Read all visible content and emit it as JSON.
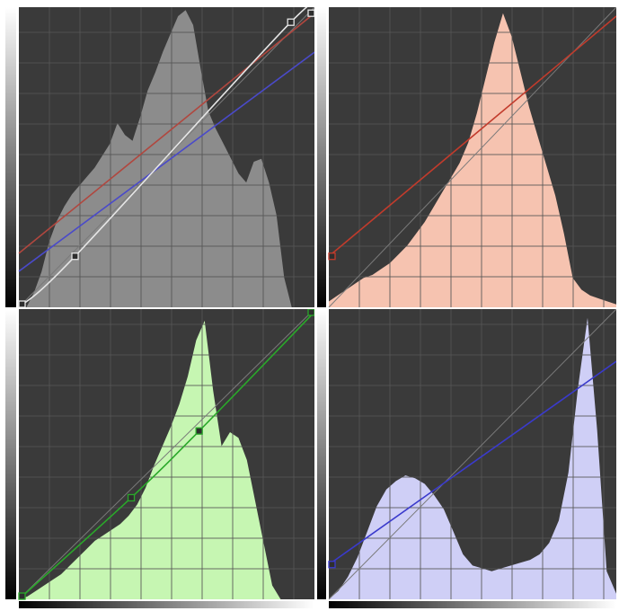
{
  "editor": {
    "panels": [
      {
        "id": "rgb",
        "name": "composite-curves-panel",
        "hist_color": "#8c8c8c",
        "peak_norm": 0.99,
        "histogram": [
          0.0,
          0.0,
          0.05,
          0.12,
          0.22,
          0.29,
          0.34,
          0.38,
          0.41,
          0.44,
          0.47,
          0.51,
          0.55,
          0.62,
          0.58,
          0.56,
          0.64,
          0.73,
          0.79,
          0.86,
          0.92,
          0.98,
          1.0,
          0.95,
          0.8,
          0.66,
          0.6,
          0.55,
          0.5,
          0.45,
          0.42,
          0.49,
          0.5,
          0.42,
          0.31,
          0.1,
          0.0,
          0.0,
          0.0,
          0.0
        ],
        "curves": [
          {
            "name": "red-channel-curve",
            "color": "#b0473f",
            "points": [
              [
                0.0,
                0.18
              ],
              [
                1.0,
                0.98
              ]
            ],
            "smooth": false,
            "handles": false
          },
          {
            "name": "blue-channel-curve",
            "color": "#4a4ac9",
            "points": [
              [
                0.0,
                0.12
              ],
              [
                1.0,
                0.85
              ]
            ],
            "smooth": false,
            "handles": false
          },
          {
            "name": "rgb-master-curve",
            "color": "#e6e6e6",
            "points": [
              [
                0.0,
                0.0
              ],
              [
                0.19,
                0.17
              ],
              [
                0.92,
                0.95
              ],
              [
                1.0,
                0.98
              ]
            ],
            "smooth": true,
            "handles": true
          }
        ]
      },
      {
        "id": "red",
        "name": "red-curves-panel",
        "hist_color": "#f6c3b0",
        "peak_norm": 0.98,
        "histogram": [
          0.02,
          0.04,
          0.06,
          0.08,
          0.1,
          0.11,
          0.13,
          0.15,
          0.18,
          0.21,
          0.25,
          0.29,
          0.34,
          0.39,
          0.44,
          0.49,
          0.56,
          0.66,
          0.78,
          0.9,
          1.0,
          0.92,
          0.8,
          0.68,
          0.58,
          0.48,
          0.38,
          0.25,
          0.1,
          0.06,
          0.04,
          0.03,
          0.02,
          0.01
        ],
        "curves": [
          {
            "name": "red-curve",
            "color": "#c23b2c",
            "points": [
              [
                0.0,
                0.17
              ],
              [
                1.0,
                0.97
              ]
            ],
            "smooth": false,
            "handles": true,
            "handle_ends": "start"
          }
        ]
      },
      {
        "id": "green",
        "name": "green-curves-panel",
        "hist_color": "#c6f6b2",
        "peak_norm": 0.96,
        "histogram": [
          0.0,
          0.01,
          0.03,
          0.05,
          0.07,
          0.09,
          0.12,
          0.15,
          0.18,
          0.21,
          0.23,
          0.25,
          0.27,
          0.3,
          0.34,
          0.4,
          0.48,
          0.55,
          0.62,
          0.7,
          0.8,
          0.93,
          1.0,
          0.75,
          0.55,
          0.6,
          0.58,
          0.5,
          0.35,
          0.2,
          0.05,
          0.0,
          0.0,
          0.0,
          0.0,
          0.0
        ],
        "curves": [
          {
            "name": "green-curve",
            "color": "#2aa82a",
            "points": [
              [
                0.0,
                0.0
              ],
              [
                0.38,
                0.35
              ],
              [
                0.61,
                0.58
              ],
              [
                1.0,
                0.99
              ]
            ],
            "smooth": true,
            "handles": true
          }
        ]
      },
      {
        "id": "blue",
        "name": "blue-curves-panel",
        "hist_color": "#cfcff6",
        "peak_norm": 0.97,
        "histogram": [
          0.0,
          0.03,
          0.08,
          0.15,
          0.24,
          0.33,
          0.39,
          0.42,
          0.44,
          0.43,
          0.41,
          0.37,
          0.32,
          0.24,
          0.16,
          0.12,
          0.11,
          0.1,
          0.11,
          0.12,
          0.13,
          0.14,
          0.16,
          0.2,
          0.28,
          0.45,
          0.75,
          1.0,
          0.6,
          0.1,
          0.02
        ],
        "curves": [
          {
            "name": "blue-curve",
            "color": "#3a3acc",
            "points": [
              [
                0.0,
                0.12
              ],
              [
                1.0,
                0.82
              ]
            ],
            "smooth": false,
            "handles": true,
            "handle_ends": "start"
          }
        ]
      }
    ],
    "colors": {
      "plot_bg": "#3a3a3a",
      "grid_line": "#555555",
      "diagonal": "#7a7a7a",
      "handle_fill": "#2e2e2e"
    }
  }
}
